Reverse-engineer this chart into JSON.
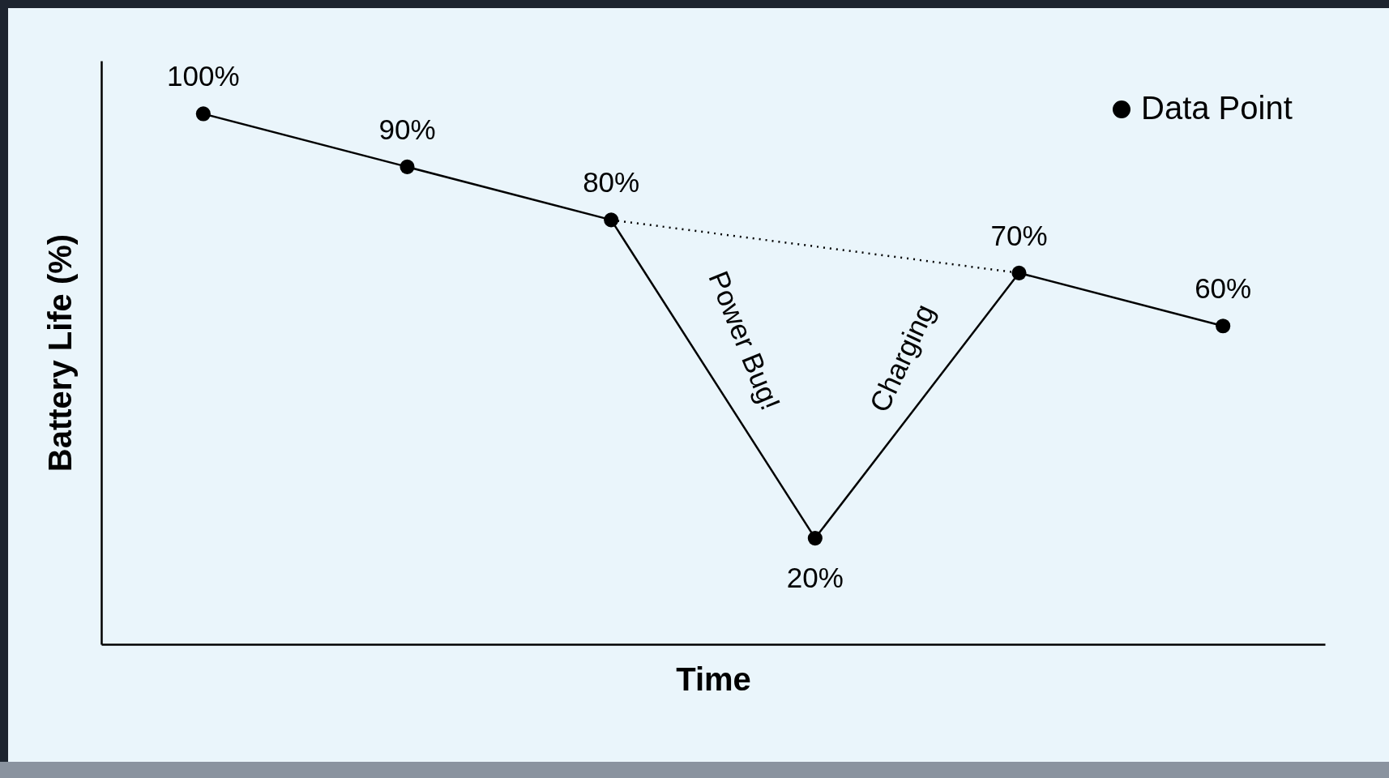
{
  "chart_data": {
    "type": "line",
    "xlabel": "Time",
    "ylabel": "Battery Life (%)",
    "categories": [
      null,
      null,
      null,
      null,
      null,
      null
    ],
    "ylim": [
      0,
      110
    ],
    "grid": false,
    "legend": "top right",
    "series": [
      {
        "name": "Data Point",
        "color": "#000000",
        "line_style": "solid",
        "marker": "circle",
        "values": [
          100,
          90,
          80,
          20,
          70,
          60
        ],
        "value_labels": [
          "100%",
          "90%",
          "80%",
          "20%",
          "70%",
          "60%"
        ]
      },
      {
        "color": "#000000",
        "line_style": "dotted",
        "values": [
          null,
          null,
          80,
          null,
          70,
          null
        ]
      }
    ],
    "annotations": [
      "Power Bug!",
      "Charging"
    ]
  }
}
